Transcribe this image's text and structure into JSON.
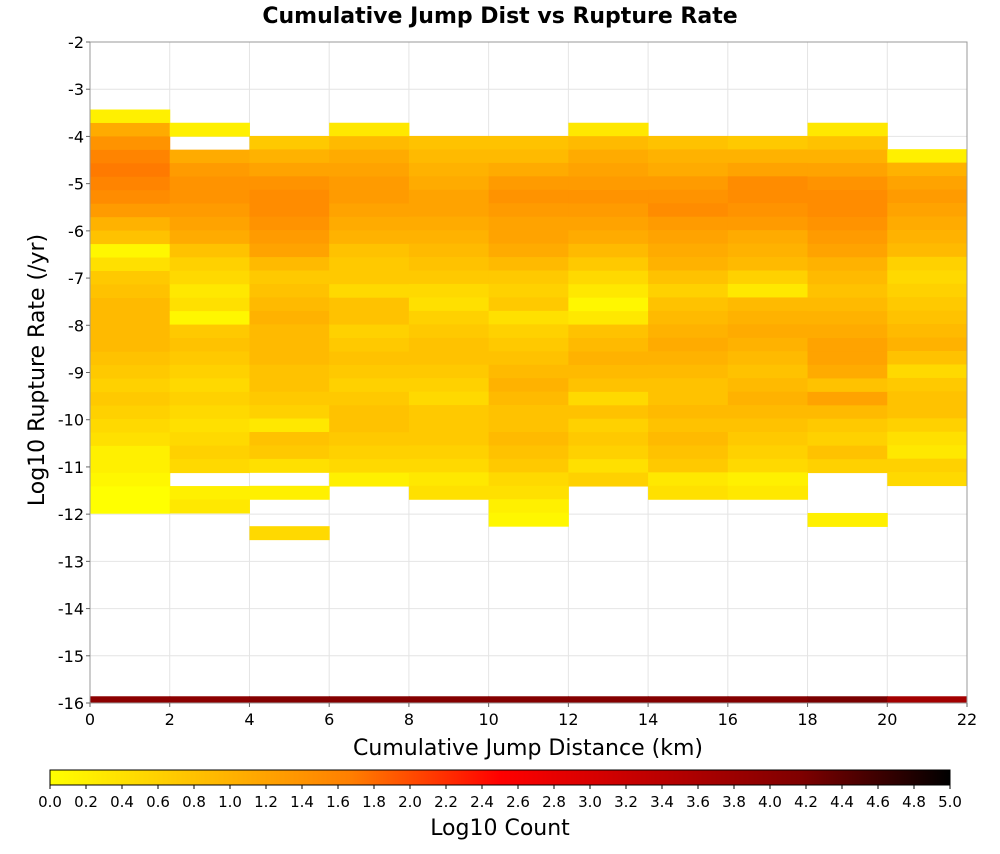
{
  "chart_data": {
    "type": "heatmap",
    "title": "Cumulative Jump Dist vs Rupture Rate",
    "xlabel": "Cumulative Jump Distance (km)",
    "ylabel": "Log10 Rupture Rate (/yr)",
    "colorbar_label": "Log10 Count",
    "xlim": [
      0,
      22
    ],
    "ylim": [
      -16,
      -2
    ],
    "x_ticks": [
      "0",
      "2",
      "4",
      "6",
      "8",
      "10",
      "12",
      "14",
      "16",
      "18",
      "20",
      "22"
    ],
    "y_ticks": [
      "-2",
      "-3",
      "-4",
      "-5",
      "-6",
      "-7",
      "-8",
      "-9",
      "-10",
      "-11",
      "-12",
      "-13",
      "-14",
      "-15",
      "-16"
    ],
    "colorbar_ticks": [
      "0.0",
      "0.2",
      "0.4",
      "0.6",
      "0.8",
      "1.0",
      "1.2",
      "1.4",
      "1.6",
      "1.8",
      "2.0",
      "2.2",
      "2.4",
      "2.6",
      "2.8",
      "3.0",
      "3.2",
      "3.4",
      "3.6",
      "3.8",
      "4.0",
      "4.2",
      "4.4",
      "4.6",
      "4.8",
      "5.0"
    ],
    "color_range": [
      0,
      5
    ],
    "colormap": [
      "#ffff00",
      "#ffbf00",
      "#ff7f00",
      "#ff0000",
      "#bf0000",
      "#7f0000",
      "#000000"
    ],
    "grid": true,
    "x_bin_width": 2,
    "y_bin_height": 0.285,
    "y_bin_origin": -16,
    "cells": [
      {
        "x": 0,
        "y_range": [
          -3.43,
          -12.12
        ],
        "values": [
          0.2,
          1.1,
          1.4,
          1.6,
          1.7,
          1.6,
          1.5,
          1.3,
          1.0,
          0.8,
          0.1,
          0.4,
          0.7,
          0.8,
          0.9,
          0.9,
          0.9,
          0.9,
          0.8,
          0.7,
          0.6,
          0.7,
          0.6,
          0.5,
          0.4,
          0.2,
          0.2,
          0.1,
          0.0,
          0.0
        ]
      },
      {
        "x": 2,
        "y_range": [
          -3.71,
          -11.83
        ],
        "values": [
          0.2,
          null,
          1.1,
          1.3,
          1.4,
          1.4,
          1.3,
          1.2,
          1.1,
          0.8,
          0.6,
          0.5,
          0.3,
          0.4,
          0.1,
          0.7,
          0.8,
          0.7,
          0.6,
          0.5,
          0.6,
          0.5,
          0.4,
          0.5,
          0.6,
          0.5,
          null,
          0.2,
          0.3
        ]
      },
      {
        "x": 4,
        "y_range": [
          -3.99,
          -12.69
        ],
        "values": [
          0.7,
          1.0,
          1.2,
          1.4,
          1.5,
          1.5,
          1.4,
          1.3,
          1.2,
          0.9,
          0.7,
          0.8,
          0.9,
          1.0,
          0.9,
          0.9,
          0.9,
          0.8,
          0.8,
          0.7,
          0.6,
          0.3,
          0.8,
          0.7,
          0.4,
          null,
          0.2,
          null,
          null,
          0.5
        ]
      },
      {
        "x": 6,
        "y_range": [
          -3.71,
          -11.55
        ],
        "values": [
          0.3,
          0.9,
          1.1,
          1.2,
          1.3,
          1.3,
          1.2,
          1.1,
          1.0,
          0.8,
          0.7,
          0.7,
          0.5,
          0.8,
          0.8,
          0.6,
          0.7,
          0.8,
          0.7,
          0.6,
          0.7,
          0.8,
          0.8,
          0.7,
          0.6,
          0.5,
          0.2
        ]
      },
      {
        "x": 8,
        "y_range": [
          -3.99,
          -11.55
        ],
        "values": [
          0.8,
          0.9,
          1.0,
          1.1,
          1.2,
          1.2,
          1.1,
          1.0,
          0.9,
          0.8,
          0.7,
          0.5,
          0.4,
          0.6,
          0.7,
          0.8,
          0.8,
          0.7,
          0.6,
          0.5,
          0.7,
          0.7,
          0.7,
          0.6,
          0.5,
          0.3,
          0.4
        ]
      },
      {
        "x": 10,
        "y_range": [
          -3.99,
          -12.12
        ],
        "values": [
          0.8,
          0.9,
          1.1,
          1.3,
          1.4,
          1.3,
          1.2,
          1.2,
          1.1,
          0.9,
          0.7,
          0.6,
          0.7,
          0.4,
          0.6,
          0.7,
          0.8,
          0.9,
          1.0,
          0.9,
          0.8,
          0.8,
          0.9,
          0.8,
          0.7,
          0.5,
          0.4,
          0.2,
          0.1
        ]
      },
      {
        "x": 12,
        "y_range": [
          -3.71,
          -11.55
        ],
        "values": [
          0.3,
          0.9,
          1.1,
          1.2,
          1.3,
          1.4,
          1.3,
          1.2,
          1.1,
          0.9,
          0.7,
          0.5,
          0.3,
          0.1,
          0.3,
          0.8,
          0.9,
          1.0,
          0.9,
          0.8,
          0.5,
          0.8,
          0.6,
          0.7,
          0.6,
          0.4,
          0.6
        ]
      },
      {
        "x": 14,
        "y_range": [
          -3.99,
          -11.55
        ],
        "values": [
          0.8,
          1.0,
          1.1,
          1.3,
          1.4,
          1.5,
          1.3,
          1.2,
          1.1,
          1.0,
          0.8,
          0.6,
          0.8,
          0.9,
          1.0,
          1.1,
          1.0,
          0.9,
          0.8,
          0.8,
          0.9,
          0.8,
          0.9,
          0.8,
          0.7,
          0.3,
          0.4
        ]
      },
      {
        "x": 16,
        "y_range": [
          -3.99,
          -11.55
        ],
        "values": [
          0.7,
          1.0,
          1.2,
          1.5,
          1.5,
          1.4,
          1.3,
          1.1,
          1.0,
          0.9,
          0.6,
          0.3,
          0.9,
          1.0,
          1.1,
          1.0,
          0.9,
          0.8,
          0.9,
          1.0,
          0.9,
          0.8,
          0.7,
          0.6,
          0.5,
          0.2,
          0.3
        ]
      },
      {
        "x": 18,
        "y_range": [
          -3.71,
          -12.4
        ],
        "values": [
          0.3,
          0.8,
          1.0,
          1.2,
          1.4,
          1.5,
          1.5,
          1.4,
          1.3,
          1.2,
          1.0,
          0.9,
          0.8,
          0.9,
          1.0,
          1.1,
          1.2,
          1.2,
          1.1,
          0.8,
          1.2,
          0.9,
          0.7,
          0.6,
          0.8,
          0.6,
          null,
          null,
          null,
          0.2
        ]
      },
      {
        "x": 20,
        "y_range": [
          -4.27,
          -11.26
        ],
        "values": [
          0.2,
          1.0,
          1.2,
          1.3,
          1.2,
          1.1,
          1.0,
          0.9,
          0.6,
          0.5,
          0.6,
          0.7,
          0.8,
          0.9,
          1.0,
          0.8,
          0.5,
          0.7,
          0.8,
          0.8,
          0.6,
          0.4,
          0.3,
          0.6,
          0.5
        ]
      }
    ],
    "bottom_row": {
      "y": -16,
      "values": [
        4.0,
        4.0,
        4.1,
        4.1,
        4.1,
        4.1,
        4.1,
        4.1,
        4.1,
        4.2,
        3.7
      ]
    }
  }
}
